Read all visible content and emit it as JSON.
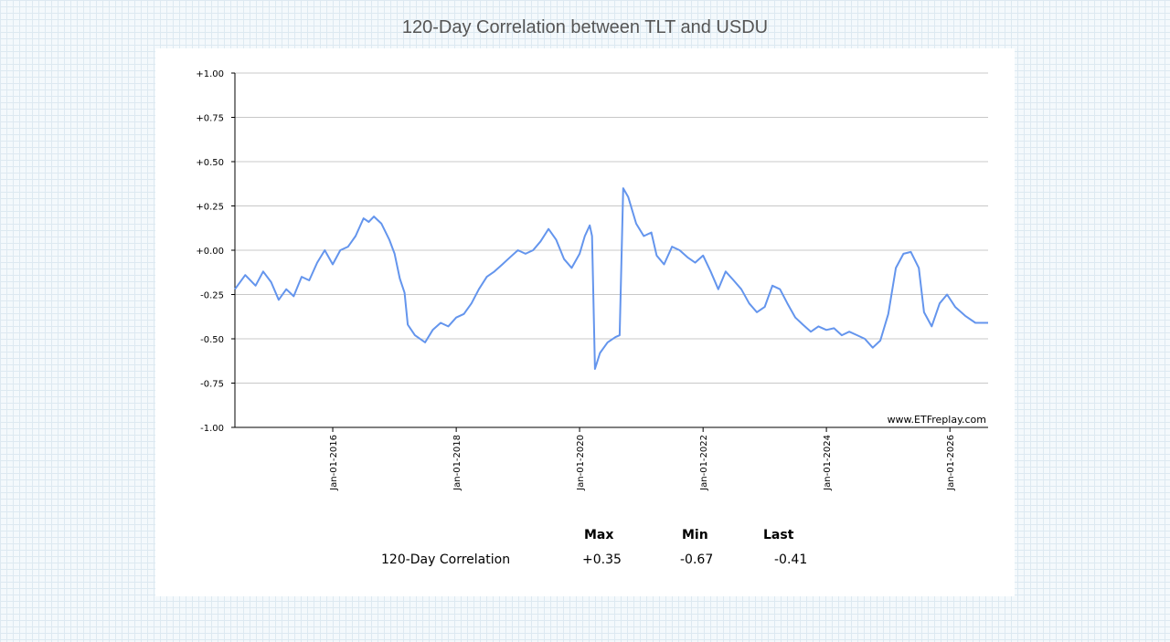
{
  "chart_data": {
    "type": "line",
    "title": "120-Day Correlation between TLT and USDU",
    "xlabel": "",
    "ylabel": "",
    "ylim": [
      -1.0,
      1.0
    ],
    "xlim": [
      "2014-06-01",
      "2026-08-15"
    ],
    "y_ticks": [
      "+1.00",
      "+0.75",
      "+0.50",
      "+0.25",
      "+0.00",
      "-0.25",
      "-0.50",
      "-0.75",
      "-1.00"
    ],
    "y_tick_values": [
      1.0,
      0.75,
      0.5,
      0.25,
      0.0,
      -0.25,
      -0.5,
      -0.75,
      -1.0
    ],
    "x_ticks": [
      "Jan-01-2016",
      "Jan-01-2018",
      "Jan-01-2020",
      "Jan-01-2022",
      "Jan-01-2024",
      "Jan-01-2026"
    ],
    "x_tick_dates": [
      "2016-01-01",
      "2018-01-01",
      "2020-01-01",
      "2022-01-01",
      "2024-01-01",
      "2026-01-01"
    ],
    "grid": "horizontal",
    "watermark": "www.ETFreplay.com",
    "series": [
      {
        "name": "120-Day Correlation",
        "color": "#6495ed",
        "points": [
          [
            "2014-06-01",
            -0.22
          ],
          [
            "2014-08-01",
            -0.14
          ],
          [
            "2014-10-01",
            -0.2
          ],
          [
            "2014-11-15",
            -0.12
          ],
          [
            "2015-01-01",
            -0.18
          ],
          [
            "2015-02-15",
            -0.28
          ],
          [
            "2015-04-01",
            -0.22
          ],
          [
            "2015-05-15",
            -0.26
          ],
          [
            "2015-07-01",
            -0.15
          ],
          [
            "2015-08-15",
            -0.17
          ],
          [
            "2015-10-01",
            -0.07
          ],
          [
            "2015-11-15",
            0.0
          ],
          [
            "2016-01-01",
            -0.08
          ],
          [
            "2016-02-15",
            0.0
          ],
          [
            "2016-04-01",
            0.02
          ],
          [
            "2016-05-15",
            0.08
          ],
          [
            "2016-07-01",
            0.18
          ],
          [
            "2016-08-01",
            0.16
          ],
          [
            "2016-09-01",
            0.19
          ],
          [
            "2016-10-15",
            0.15
          ],
          [
            "2016-12-01",
            0.06
          ],
          [
            "2017-01-01",
            -0.02
          ],
          [
            "2017-02-01",
            -0.16
          ],
          [
            "2017-03-01",
            -0.24
          ],
          [
            "2017-03-20",
            -0.42
          ],
          [
            "2017-05-01",
            -0.48
          ],
          [
            "2017-07-01",
            -0.52
          ],
          [
            "2017-08-15",
            -0.45
          ],
          [
            "2017-10-01",
            -0.41
          ],
          [
            "2017-11-15",
            -0.43
          ],
          [
            "2018-01-01",
            -0.38
          ],
          [
            "2018-02-15",
            -0.36
          ],
          [
            "2018-04-01",
            -0.3
          ],
          [
            "2018-05-15",
            -0.22
          ],
          [
            "2018-07-01",
            -0.15
          ],
          [
            "2018-08-15",
            -0.12
          ],
          [
            "2018-10-01",
            -0.08
          ],
          [
            "2018-11-15",
            -0.04
          ],
          [
            "2019-01-01",
            0.0
          ],
          [
            "2019-02-15",
            -0.02
          ],
          [
            "2019-04-01",
            0.0
          ],
          [
            "2019-05-15",
            0.05
          ],
          [
            "2019-07-01",
            0.12
          ],
          [
            "2019-08-15",
            0.06
          ],
          [
            "2019-10-01",
            -0.05
          ],
          [
            "2019-11-15",
            -0.1
          ],
          [
            "2020-01-01",
            -0.02
          ],
          [
            "2020-02-01",
            0.08
          ],
          [
            "2020-03-01",
            0.14
          ],
          [
            "2020-03-15",
            0.08
          ],
          [
            "2020-04-01",
            -0.67
          ],
          [
            "2020-05-01",
            -0.58
          ],
          [
            "2020-06-15",
            -0.52
          ],
          [
            "2020-08-01",
            -0.49
          ],
          [
            "2020-08-25",
            -0.48
          ],
          [
            "2020-09-15",
            0.35
          ],
          [
            "2020-10-15",
            0.3
          ],
          [
            "2020-12-01",
            0.15
          ],
          [
            "2021-01-15",
            0.08
          ],
          [
            "2021-03-01",
            0.1
          ],
          [
            "2021-04-01",
            -0.03
          ],
          [
            "2021-05-15",
            -0.08
          ],
          [
            "2021-07-01",
            0.02
          ],
          [
            "2021-08-15",
            0.0
          ],
          [
            "2021-10-01",
            -0.04
          ],
          [
            "2021-11-15",
            -0.07
          ],
          [
            "2022-01-01",
            -0.03
          ],
          [
            "2022-02-15",
            -0.12
          ],
          [
            "2022-04-01",
            -0.22
          ],
          [
            "2022-05-15",
            -0.12
          ],
          [
            "2022-07-01",
            -0.17
          ],
          [
            "2022-08-15",
            -0.22
          ],
          [
            "2022-10-01",
            -0.3
          ],
          [
            "2022-11-15",
            -0.35
          ],
          [
            "2023-01-01",
            -0.32
          ],
          [
            "2023-02-15",
            -0.2
          ],
          [
            "2023-04-01",
            -0.22
          ],
          [
            "2023-05-15",
            -0.3
          ],
          [
            "2023-07-01",
            -0.38
          ],
          [
            "2023-08-15",
            -0.42
          ],
          [
            "2023-10-01",
            -0.46
          ],
          [
            "2023-11-15",
            -0.43
          ],
          [
            "2024-01-01",
            -0.45
          ],
          [
            "2024-02-15",
            -0.44
          ],
          [
            "2024-04-01",
            -0.48
          ],
          [
            "2024-05-15",
            -0.46
          ],
          [
            "2024-07-01",
            -0.48
          ],
          [
            "2024-08-15",
            -0.5
          ],
          [
            "2024-10-01",
            -0.55
          ],
          [
            "2024-11-15",
            -0.51
          ],
          [
            "2025-01-01",
            -0.36
          ],
          [
            "2025-02-15",
            -0.1
          ],
          [
            "2025-04-01",
            -0.02
          ],
          [
            "2025-05-15",
            -0.01
          ],
          [
            "2025-07-01",
            -0.1
          ],
          [
            "2025-08-01",
            -0.35
          ],
          [
            "2025-09-15",
            -0.43
          ],
          [
            "2025-11-01",
            -0.3
          ],
          [
            "2025-12-15",
            -0.25
          ],
          [
            "2026-02-01",
            -0.32
          ],
          [
            "2026-04-01",
            -0.37
          ],
          [
            "2026-06-01",
            -0.41
          ],
          [
            "2026-08-15",
            -0.41
          ]
        ]
      }
    ]
  },
  "stats": {
    "headers": [
      "Max",
      "Min",
      "Last"
    ],
    "row_label": "120-Day Correlation",
    "values": [
      "+0.35",
      "-0.67",
      "-0.41"
    ]
  }
}
